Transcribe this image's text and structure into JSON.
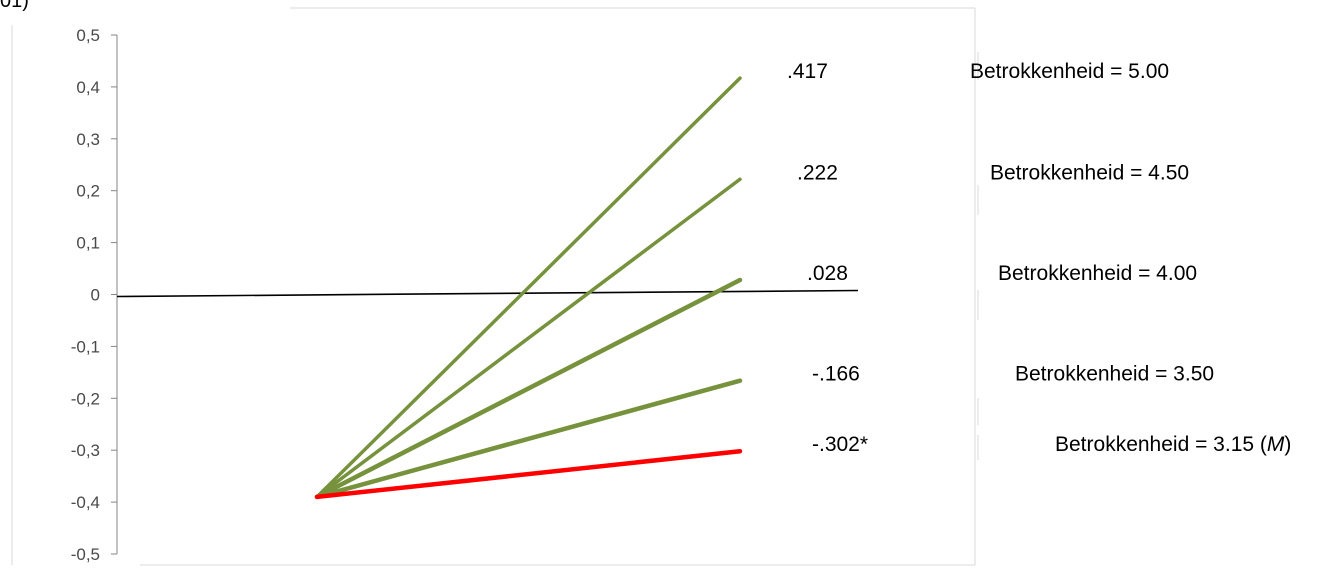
{
  "corner_text": "01)",
  "chart_data": {
    "type": "line",
    "title": "",
    "xlabel": "",
    "ylabel": "",
    "ylim": [
      -0.5,
      0.5
    ],
    "yticks": [
      "0,5",
      "0,4",
      "0,3",
      "0,2",
      "0,1",
      "0",
      "-0,1",
      "-0,2",
      "-0,3",
      "-0,4",
      "-0,5"
    ],
    "ytick_values": [
      0.5,
      0.4,
      0.3,
      0.2,
      0.1,
      0,
      -0.1,
      -0.2,
      -0.3,
      -0.4,
      -0.5
    ],
    "x": [
      0,
      1
    ],
    "reference_line": {
      "y": 0,
      "color": "#000000"
    },
    "series": [
      {
        "name": "Betrokkenheid = 5.00",
        "label": ".417",
        "values": [
          -0.39,
          0.417
        ],
        "color": "#76923c"
      },
      {
        "name": "Betrokkenheid = 4.50",
        "label": ".222",
        "values": [
          -0.39,
          0.222
        ],
        "color": "#76923c"
      },
      {
        "name": "Betrokkenheid = 4.00",
        "label": ".028",
        "values": [
          -0.39,
          0.028
        ],
        "color": "#76923c"
      },
      {
        "name": "Betrokkenheid = 3.50",
        "label": "-.166",
        "values": [
          -0.39,
          -0.166
        ],
        "color": "#76923c"
      },
      {
        "name_prefix": "Betrokkenheid = 3.15 (",
        "name_italic": "M",
        "name_suffix": ")",
        "label": "-.302*",
        "values": [
          -0.39,
          -0.302
        ],
        "color": "#ff0000"
      }
    ]
  }
}
